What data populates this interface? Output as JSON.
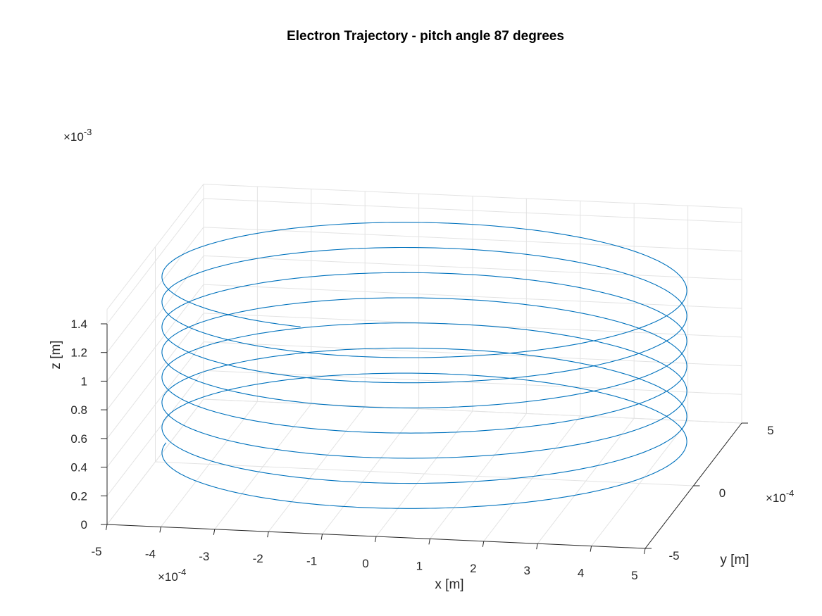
{
  "chart_data": {
    "type": "line3d",
    "title": "Electron Trajectory - pitch angle 87 degrees",
    "xlabel": "x [m]",
    "ylabel": "y [m]",
    "zlabel": "z [m]",
    "x_ticks": [
      "-5",
      "-4",
      "-3",
      "-2",
      "-1",
      "0",
      "1",
      "2",
      "3",
      "4",
      "5"
    ],
    "y_ticks": [
      "-5",
      "0",
      "5"
    ],
    "z_ticks": [
      "0",
      "0.2",
      "0.4",
      "0.6",
      "0.8",
      "1",
      "1.2",
      "1.4"
    ],
    "x_exponent": {
      "base": "×10",
      "power": "-4"
    },
    "y_exponent": {
      "base": "×10",
      "power": "-4"
    },
    "z_exponent": {
      "base": "×10",
      "power": "-3"
    },
    "xlim": [
      -0.0005,
      0.0005
    ],
    "ylim": [
      -0.0005,
      0.0005
    ],
    "zlim": [
      0,
      0.0015
    ],
    "grid": true,
    "color": "#0072bd",
    "series": [
      {
        "curve": "helix",
        "radius": 0.00048,
        "center": [
          0,
          0
        ],
        "z_start": 0.000137,
        "z_end": 0.0014,
        "turns": 7.2
      }
    ]
  }
}
